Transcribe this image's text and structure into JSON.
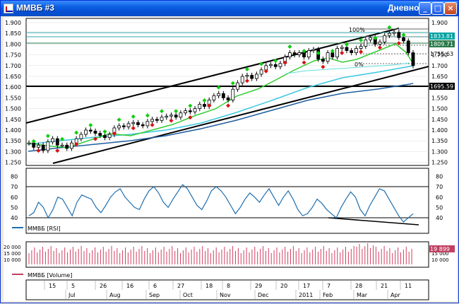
{
  "window": {
    "title": "ММВБ #3",
    "period": "Дневной",
    "buttons": {
      "minimize": "_",
      "maximize": "□",
      "close": "×"
    }
  },
  "price_axis": {
    "labels": [
      "1.900",
      "1.850",
      "1.800",
      "1.750",
      "1.700",
      "1.650",
      "1.600",
      "1.550",
      "1.500",
      "1.450",
      "1.400",
      "1.350",
      "1.300",
      "1.250"
    ],
    "markers": [
      {
        "value": "1833.81",
        "color": "#00a0a0"
      },
      {
        "value": "1809.71",
        "color": "#2a7a4a"
      },
      {
        "value": "1755.63",
        "color": "#000000"
      },
      {
        "value": "1695.59",
        "color": "#000000"
      }
    ],
    "fib_labels": [
      "100%",
      "0%"
    ]
  },
  "rsi": {
    "legend": "ММВБ [RSI]",
    "labels": [
      "80",
      "70",
      "60",
      "50",
      "40"
    ]
  },
  "volume": {
    "legend": "ММВБ [Volume]",
    "labels": [
      "20 000",
      "15 000",
      "10 000"
    ],
    "last_value": "19 899"
  },
  "date_axis": {
    "days": [
      "15",
      "5",
      "26",
      "16",
      "6",
      "27",
      "18",
      "8",
      "29",
      "20",
      "17",
      "7",
      "28",
      "21",
      "11"
    ],
    "months": [
      "Jul",
      "Aug",
      "Sep",
      "Oct",
      "Nov",
      "Dec",
      "2011",
      "Feb",
      "Mar",
      "Apr"
    ]
  },
  "chart_data": {
    "type": "candlestick",
    "series": [
      {
        "name": "ММВБ",
        "close_path": [
          1340,
          1320,
          1330,
          1305,
          1345,
          1360,
          1330,
          1330,
          1315,
          1340,
          1360,
          1380,
          1400,
          1395,
          1385,
          1375,
          1365,
          1380,
          1410,
          1420,
          1415,
          1430,
          1435,
          1425,
          1420,
          1440,
          1450,
          1445,
          1460,
          1465,
          1470,
          1460,
          1480,
          1490,
          1485,
          1500,
          1520,
          1510,
          1540,
          1560,
          1570,
          1550,
          1540,
          1590,
          1620,
          1650,
          1655,
          1640,
          1660,
          1680,
          1700,
          1705,
          1695,
          1710,
          1740,
          1760,
          1750,
          1760,
          1740,
          1770,
          1775,
          1730,
          1720,
          1760,
          1740,
          1780,
          1785,
          1770,
          1760,
          1780,
          1790,
          1820,
          1830,
          1800,
          1810,
          1840,
          1850,
          1855,
          1830,
          1815,
          1760,
          1700
        ]
      },
      {
        "name": "ММВБ [RSI]",
        "values": [
          42,
          45,
          55,
          50,
          40,
          48,
          60,
          58,
          50,
          42,
          55,
          62,
          60,
          58,
          50,
          45,
          52,
          60,
          65,
          68,
          60,
          55,
          50,
          48,
          58,
          66,
          70,
          64,
          55,
          50,
          58,
          65,
          72,
          68,
          60,
          52,
          48,
          56,
          66,
          70,
          66,
          60,
          52,
          44,
          50,
          58,
          64,
          60,
          55,
          62,
          68,
          60,
          52,
          60,
          66,
          58,
          48,
          42,
          44,
          50,
          58,
          54,
          48,
          44,
          40,
          50,
          58,
          65,
          60,
          48,
          42,
          52,
          60,
          68,
          66,
          58,
          50,
          42,
          36,
          40,
          44
        ]
      },
      {
        "name": "ММВБ [Volume]",
        "last": 19899
      }
    ]
  }
}
